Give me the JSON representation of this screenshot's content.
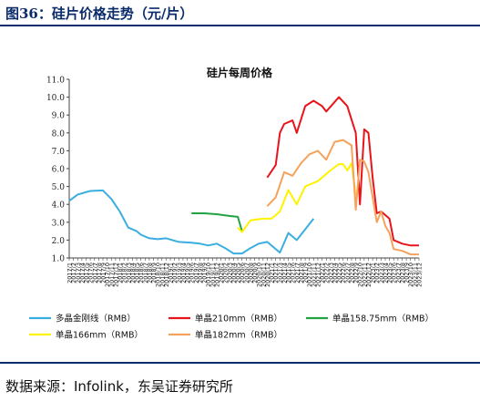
{
  "figure_title": "图36：硅片价格走势（元/片）",
  "source_text": "数据来源：Infolink，东吴证券研究所",
  "chart_data": {
    "type": "line",
    "title": "硅片每周价格",
    "xlabel": "",
    "ylabel": "",
    "ylim": [
      1.0,
      11.0
    ],
    "y_ticks": [
      "1.0",
      "2.0",
      "3.0",
      "4.0",
      "5.0",
      "6.0",
      "7.0",
      "8.0",
      "9.0",
      "10.0",
      "11.0"
    ],
    "x_range": [
      "2017/1",
      "2023/12"
    ],
    "grid": false,
    "legend_position": "bottom",
    "series": [
      {
        "name": "多晶金刚线（RMB）",
        "color": "#3aaee0",
        "x": [
          "2017/1",
          "2017/3",
          "2017/6",
          "2017/9",
          "2017/11",
          "2018/1",
          "2018/3",
          "2018/5",
          "2018/6",
          "2018/8",
          "2018/10",
          "2018/12",
          "2019/3",
          "2019/6",
          "2019/8",
          "2019/10",
          "2019/12",
          "2020/2",
          "2020/4",
          "2020/6",
          "2020/8",
          "2020/10",
          "2020/12",
          "2021/3",
          "2021/5",
          "2021/7",
          "2021/9",
          "2021/11"
        ],
        "values": [
          4.2,
          4.55,
          4.75,
          4.78,
          4.3,
          3.6,
          2.7,
          2.5,
          2.3,
          2.1,
          2.05,
          2.1,
          1.9,
          1.85,
          1.8,
          1.7,
          1.8,
          1.55,
          1.25,
          1.25,
          1.55,
          1.8,
          1.9,
          1.3,
          2.4,
          2.0,
          2.6,
          3.2
        ]
      },
      {
        "name": "单晶210mm（RMB）",
        "color": "#e8141c",
        "x": [
          "2020/12",
          "2021/2",
          "2021/3",
          "2021/4",
          "2021/6",
          "2021/7",
          "2021/9",
          "2021/11",
          "2022/1",
          "2022/2",
          "2022/5",
          "2022/7",
          "2022/9",
          "2022/10",
          "2022/11",
          "2022/12",
          "2023/1",
          "2023/2",
          "2023/3",
          "2023/5",
          "2023/6",
          "2023/8",
          "2023/10",
          "2023/12"
        ],
        "values": [
          5.5,
          6.2,
          8.0,
          8.5,
          8.7,
          8.0,
          9.5,
          9.8,
          9.5,
          9.2,
          10.0,
          9.5,
          8.0,
          4.0,
          8.2,
          8.0,
          5.5,
          3.5,
          3.6,
          3.2,
          2.0,
          1.8,
          1.7,
          1.7
        ]
      },
      {
        "name": "单晶158.75mm（RMB）",
        "color": "#22a343",
        "x": [
          "2019/6",
          "2019/9",
          "2019/12",
          "2020/3",
          "2020/5",
          "2020/6"
        ],
        "values": [
          3.5,
          3.5,
          3.45,
          3.35,
          3.3,
          2.5
        ]
      },
      {
        "name": "单晶166mm（RMB）",
        "color": "#fff200",
        "x": [
          "2020/5",
          "2020/6",
          "2020/8",
          "2020/11",
          "2021/1",
          "2021/3",
          "2021/5",
          "2021/7",
          "2021/9",
          "2021/12",
          "2022/3",
          "2022/5",
          "2022/6",
          "2022/7",
          "2022/8",
          "2022/9"
        ],
        "values": [
          2.7,
          2.45,
          3.1,
          3.2,
          3.2,
          3.6,
          4.8,
          4.0,
          5.0,
          5.3,
          5.9,
          6.25,
          6.25,
          5.9,
          6.3,
          4.5
        ]
      },
      {
        "name": "单晶182mm（RMB）",
        "color": "#f4a25c",
        "x": [
          "2020/12",
          "2021/2",
          "2021/4",
          "2021/6",
          "2021/8",
          "2021/10",
          "2021/12",
          "2022/2",
          "2022/4",
          "2022/6",
          "2022/8",
          "2022/9",
          "2022/10",
          "2022/11",
          "2022/12",
          "2023/2",
          "2023/3",
          "2023/4",
          "2023/5",
          "2023/6",
          "2023/8",
          "2023/10",
          "2023/12"
        ],
        "values": [
          3.9,
          4.4,
          5.8,
          5.6,
          6.3,
          6.8,
          7.0,
          6.5,
          7.5,
          7.6,
          7.3,
          3.7,
          6.5,
          6.4,
          5.8,
          3.0,
          3.6,
          2.8,
          2.4,
          1.5,
          1.4,
          1.2,
          1.2
        ]
      }
    ],
    "x_tick_labels": [
      "2017/1",
      "2017/2",
      "2017/3",
      "2017/4",
      "2017/5",
      "2017/6",
      "2017/7",
      "2017/8",
      "2017/9",
      "2017/10",
      "2017/11",
      "2017/12",
      "2018/1",
      "2018/2",
      "2018/3",
      "2018/4",
      "2018/5",
      "2018/6",
      "2018/7",
      "2018/8",
      "2018/9",
      "2018/10",
      "2018/11",
      "2018/12",
      "2019/1",
      "2019/2",
      "2019/3",
      "2019/4",
      "2019/5",
      "2019/6",
      "2019/7",
      "2019/8",
      "2019/9",
      "2019/10",
      "2019/11",
      "2019/12",
      "2020/1",
      "2020/2",
      "2020/3",
      "2020/4",
      "2020/5",
      "2020/6",
      "2020/7",
      "2020/8",
      "2020/9",
      "2020/10",
      "2020/11",
      "2020/12",
      "2021/1",
      "2021/2",
      "2021/3",
      "2021/4",
      "2021/5",
      "2021/6",
      "2021/7",
      "2021/8",
      "2021/9",
      "2021/10",
      "2021/11",
      "2021/12",
      "2022/1",
      "2022/2",
      "2022/3",
      "2022/4",
      "2022/5",
      "2022/6",
      "2022/7",
      "2022/8",
      "2022/9",
      "2022/10",
      "2022/11",
      "2022/12",
      "2023/1",
      "2023/2",
      "2023/3",
      "2023/4",
      "2023/5",
      "2023/6",
      "2023/7",
      "2023/8",
      "2023/9",
      "2023/10",
      "2023/11",
      "2023/12"
    ]
  }
}
